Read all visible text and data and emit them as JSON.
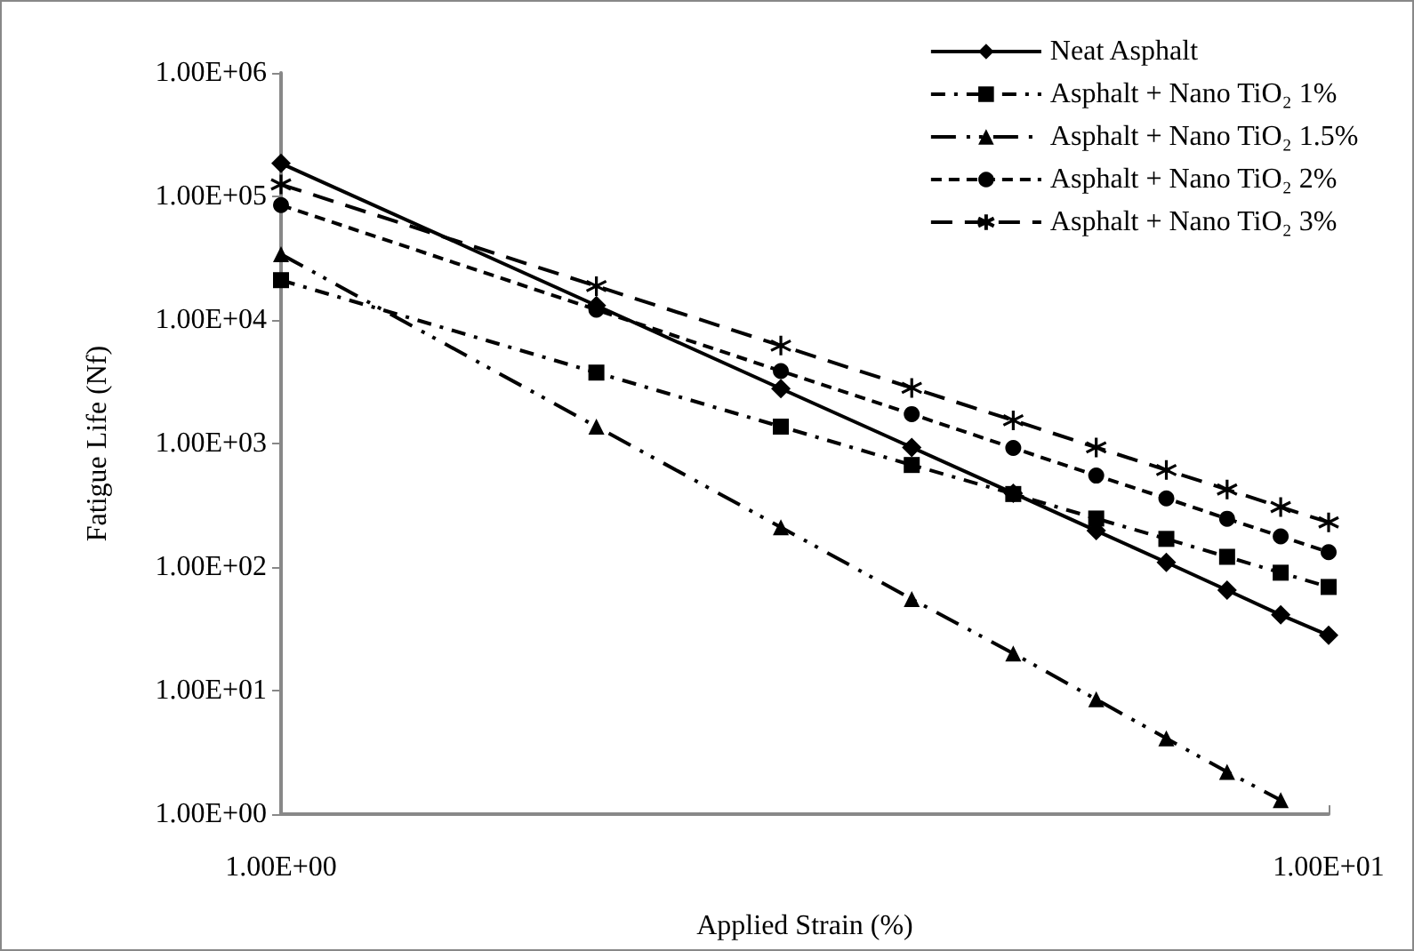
{
  "chart_data": {
    "type": "line",
    "xlabel": "Applied Strain (%)",
    "ylabel": "Fatigue Life (Nf)",
    "x": [
      1,
      2,
      3,
      4,
      5,
      6,
      7,
      8,
      9,
      10
    ],
    "series": [
      {
        "name": "Neat Asphalt",
        "color": "#000000",
        "marker": "diamond",
        "line_style": "solid",
        "values": [
          185000,
          13100,
          2780,
          930,
          396,
          197,
          109,
          65,
          41,
          28
        ]
      },
      {
        "name": "Asphalt + Nano TiO₂ 1%",
        "color": "#000000",
        "marker": "square",
        "line_style": "dashdot",
        "values": [
          21000,
          3750,
          1370,
          670,
          390,
          247,
          169,
          121,
          90,
          69
        ]
      },
      {
        "name": "Asphalt + Nano TiO₂ 1.5%",
        "color": "#000000",
        "marker": "triangle",
        "line_style": "longdashdotdot",
        "values": [
          34000,
          1370,
          210,
          55,
          20,
          8.5,
          4.1,
          2.2,
          1.3,
          null
        ]
      },
      {
        "name": "Asphalt + Nano TiO₂ 2%",
        "color": "#000000",
        "marker": "circle",
        "line_style": "dashed",
        "values": [
          85000,
          12100,
          3860,
          1730,
          920,
          550,
          360,
          246,
          177,
          132
        ]
      },
      {
        "name": "Asphalt + Nano TiO₂ 3%",
        "color": "#000000",
        "marker": "cross",
        "line_style": "longdash",
        "values": [
          125000,
          18800,
          6200,
          2820,
          1540,
          930,
          610,
          424,
          306,
          230
        ]
      }
    ],
    "log": "xy",
    "xlim": [
      1,
      10
    ],
    "ylim": [
      1,
      1000000
    ],
    "xticks": [
      {
        "value": 1,
        "label": "1.00E+00"
      },
      {
        "value": 10,
        "label": "1.00E+01"
      }
    ],
    "yticks": [
      {
        "value": 1,
        "label": "1.00E+00"
      },
      {
        "value": 10,
        "label": "1.00E+01"
      },
      {
        "value": 100,
        "label": "1.00E+02"
      },
      {
        "value": 1000,
        "label": "1.00E+03"
      },
      {
        "value": 10000,
        "label": "1.00E+04"
      },
      {
        "value": 100000,
        "label": "1.00E+05"
      },
      {
        "value": 1000000,
        "label": "1.00E+06"
      }
    ],
    "grid": false,
    "legend": "top right"
  }
}
